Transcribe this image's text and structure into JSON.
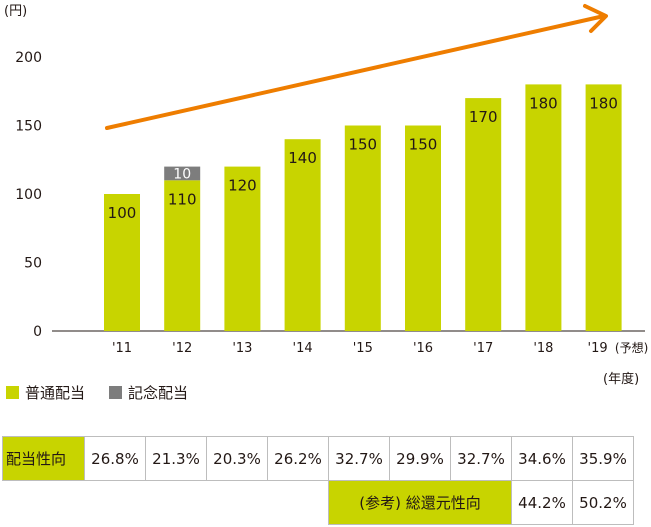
{
  "unit_y": "(円)",
  "unit_x": "(年度)",
  "legend": [
    {
      "label": "普通配当",
      "color": "#c8d400"
    },
    {
      "label": "記念配当",
      "color": "#7d7d7d"
    }
  ],
  "chart_data": {
    "type": "bar",
    "stacked": true,
    "categories": [
      "'11",
      "'12",
      "'13",
      "'14",
      "'15",
      "'16",
      "'17",
      "'18",
      "'19"
    ],
    "category_note": "(予想)",
    "series": [
      {
        "name": "普通配当",
        "color": "#c8d400",
        "values": [
          100,
          110,
          120,
          140,
          150,
          150,
          170,
          180,
          180
        ]
      },
      {
        "name": "記念配当",
        "color": "#7d7d7d",
        "values": [
          0,
          10,
          0,
          0,
          0,
          0,
          0,
          0,
          0
        ]
      }
    ],
    "yticks": [
      0,
      50,
      100,
      150,
      200
    ],
    "ylim": [
      0,
      200
    ],
    "trend_arrow_color": "#ee7d00"
  },
  "table": {
    "row1_label": "配当性向",
    "row1_values": [
      "26.8%",
      "21.3%",
      "20.3%",
      "26.2%",
      "32.7%",
      "29.9%",
      "32.7%",
      "34.6%",
      "35.9%"
    ],
    "row2_label": "(参考) 総還元性向",
    "row2_values": [
      "44.2%",
      "50.2%"
    ]
  }
}
